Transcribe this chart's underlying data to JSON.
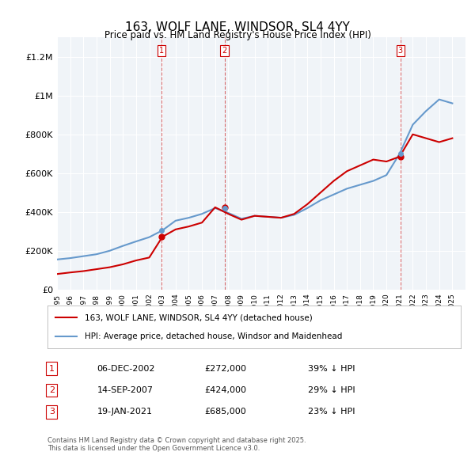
{
  "title": "163, WOLF LANE, WINDSOR, SL4 4YY",
  "subtitle": "Price paid vs. HM Land Registry's House Price Index (HPI)",
  "legend_line1": "163, WOLF LANE, WINDSOR, SL4 4YY (detached house)",
  "legend_line2": "HPI: Average price, detached house, Windsor and Maidenhead",
  "transactions": [
    {
      "num": 1,
      "date": "06-DEC-2002",
      "price": 272000,
      "pct": "39%",
      "dir": "↓"
    },
    {
      "num": 2,
      "date": "14-SEP-2007",
      "price": 424000,
      "pct": "29%",
      "dir": "↓"
    },
    {
      "num": 3,
      "date": "19-JAN-2021",
      "price": 685000,
      "pct": "23%",
      "dir": "↓"
    }
  ],
  "footnote": "Contains HM Land Registry data © Crown copyright and database right 2025.\nThis data is licensed under the Open Government Licence v3.0.",
  "red_color": "#cc0000",
  "blue_color": "#6699cc",
  "background_chart": "#f0f4f8",
  "ylim": [
    0,
    1300000
  ],
  "yticks": [
    0,
    200000,
    400000,
    600000,
    800000,
    1000000,
    1200000
  ],
  "ytick_labels": [
    "£0",
    "£200K",
    "£400K",
    "£600K",
    "£800K",
    "£1M",
    "£1.2M"
  ],
  "xstart": 1995,
  "xend": 2026,
  "vline_dates": [
    2002.92,
    2007.71,
    2021.05
  ],
  "hpi_x": [
    1995,
    1996,
    1997,
    1998,
    1999,
    2000,
    2001,
    2002,
    2003,
    2004,
    2005,
    2006,
    2007,
    2008,
    2009,
    2010,
    2011,
    2012,
    2013,
    2014,
    2015,
    2016,
    2017,
    2018,
    2019,
    2020,
    2021,
    2022,
    2023,
    2024,
    2025
  ],
  "hpi_y": [
    155000,
    162000,
    172000,
    182000,
    200000,
    225000,
    248000,
    270000,
    305000,
    355000,
    370000,
    390000,
    420000,
    395000,
    365000,
    380000,
    375000,
    370000,
    385000,
    420000,
    460000,
    490000,
    520000,
    540000,
    560000,
    590000,
    700000,
    850000,
    920000,
    980000,
    960000
  ],
  "red_x": [
    1995,
    1996,
    1997,
    1998,
    1999,
    2000,
    2001,
    2002,
    2003,
    2004,
    2005,
    2006,
    2007,
    2008,
    2009,
    2010,
    2011,
    2012,
    2013,
    2014,
    2015,
    2016,
    2017,
    2018,
    2019,
    2020,
    2021,
    2022,
    2023,
    2024,
    2025
  ],
  "red_y": [
    80000,
    88000,
    95000,
    105000,
    115000,
    130000,
    150000,
    165000,
    272000,
    310000,
    325000,
    345000,
    424000,
    390000,
    360000,
    380000,
    375000,
    370000,
    390000,
    440000,
    500000,
    560000,
    610000,
    640000,
    670000,
    660000,
    685000,
    800000,
    780000,
    760000,
    780000
  ]
}
